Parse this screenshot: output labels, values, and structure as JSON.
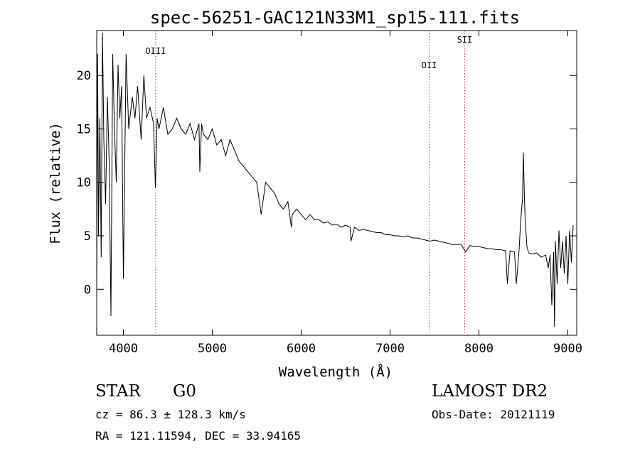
{
  "chart_data": {
    "type": "line",
    "title": "spec-56251-GAC121N33M1_sp15-111.fits",
    "xlabel": "Wavelength (Å)",
    "ylabel": "Flux (relative)",
    "xlim": [
      3700,
      9100
    ],
    "ylim": [
      -4.3,
      24.2
    ],
    "x_ticks": [
      4000,
      5000,
      6000,
      7000,
      8000,
      9000
    ],
    "y_ticks": [
      0,
      5,
      10,
      15,
      20
    ],
    "grid": false,
    "series": [
      {
        "x": [
          3700,
          3710,
          3720,
          3735,
          3750,
          3765,
          3780,
          3800,
          3820,
          3840,
          3860,
          3880,
          3900,
          3920,
          3940,
          3960,
          3980,
          4000,
          4030,
          4060,
          4100,
          4130,
          4160,
          4200,
          4230,
          4260,
          4300,
          4340,
          4360,
          4380,
          4400,
          4450,
          4500,
          4550,
          4600,
          4650,
          4700,
          4750,
          4800,
          4850,
          4860,
          4880,
          4900,
          4950,
          5000,
          5050,
          5100,
          5150,
          5200,
          5250,
          5300,
          5350,
          5400,
          5450,
          5500,
          5550,
          5600,
          5650,
          5700,
          5750,
          5800,
          5850,
          5890,
          5900,
          5950,
          6000,
          6050,
          6100,
          6150,
          6200,
          6250,
          6300,
          6350,
          6400,
          6450,
          6500,
          6550,
          6560,
          6600,
          6650,
          6700,
          6750,
          6800,
          6850,
          6900,
          6950,
          7000,
          7050,
          7100,
          7150,
          7200,
          7250,
          7300,
          7350,
          7400,
          7450,
          7500,
          7550,
          7600,
          7650,
          7700,
          7750,
          7800,
          7850,
          7900,
          7950,
          8000,
          8050,
          8100,
          8150,
          8200,
          8250,
          8300,
          8320,
          8350,
          8400,
          8420,
          8450,
          8470,
          8490,
          8500,
          8510,
          8520,
          8540,
          8560,
          8600,
          8650,
          8700,
          8750,
          8780,
          8800,
          8820,
          8840,
          8850,
          8860,
          8880,
          8900,
          8920,
          8940,
          8960,
          8980,
          9000,
          9020,
          9040,
          9060
        ],
        "y": [
          0.5,
          22,
          5,
          16,
          3,
          24,
          14,
          8,
          18,
          12,
          -2.5,
          22,
          15,
          10,
          21,
          16,
          19,
          1,
          22,
          15,
          18,
          16,
          19,
          14,
          20,
          16,
          17,
          15.5,
          9.5,
          16,
          15,
          17,
          14.5,
          15,
          16,
          15,
          14.5,
          15.5,
          14,
          15.5,
          11,
          15.5,
          14.5,
          14,
          15,
          13.5,
          14,
          12.5,
          14,
          13,
          12,
          11.5,
          11,
          10.5,
          10,
          7,
          10,
          9.5,
          9,
          8,
          7.5,
          8.2,
          5.8,
          7,
          7.5,
          7,
          6.5,
          7,
          6.5,
          6.5,
          6.2,
          6.3,
          6,
          6.1,
          5.8,
          6,
          5.8,
          4.5,
          5.8,
          5.5,
          5.6,
          5.5,
          5.4,
          5.3,
          5.3,
          5.1,
          5.1,
          5,
          5,
          4.9,
          5,
          4.8,
          4.8,
          4.7,
          4.6,
          4.5,
          4.6,
          4.5,
          4.4,
          4.3,
          4.2,
          4.2,
          4.2,
          3.5,
          4.1,
          4,
          4,
          3.9,
          3.8,
          3.8,
          3.7,
          3.7,
          3.6,
          0.5,
          3.6,
          3.5,
          0.5,
          3.5,
          6.5,
          8.5,
          12.8,
          9,
          6.5,
          4,
          3.4,
          3.3,
          3.4,
          3,
          3.2,
          2,
          3.2,
          -1.5,
          3.5,
          -3.5,
          4.5,
          0.5,
          5.5,
          2,
          4.5,
          1.5,
          5,
          0.5,
          5.5,
          2.5,
          6
        ]
      }
    ],
    "lines": [
      {
        "label": "OIII",
        "x": 4363
      },
      {
        "label": "OII",
        "x": 7440
      },
      {
        "label": "SII",
        "x": 7840
      }
    ]
  },
  "info": {
    "class": "STAR",
    "subclass": "G0",
    "survey": "LAMOST DR2",
    "cz": "cz = 86.3 ± 128.3 km/s",
    "obs_date": "Obs-Date: 20121119",
    "radec": "RA = 121.11594, DEC =  33.94165"
  }
}
